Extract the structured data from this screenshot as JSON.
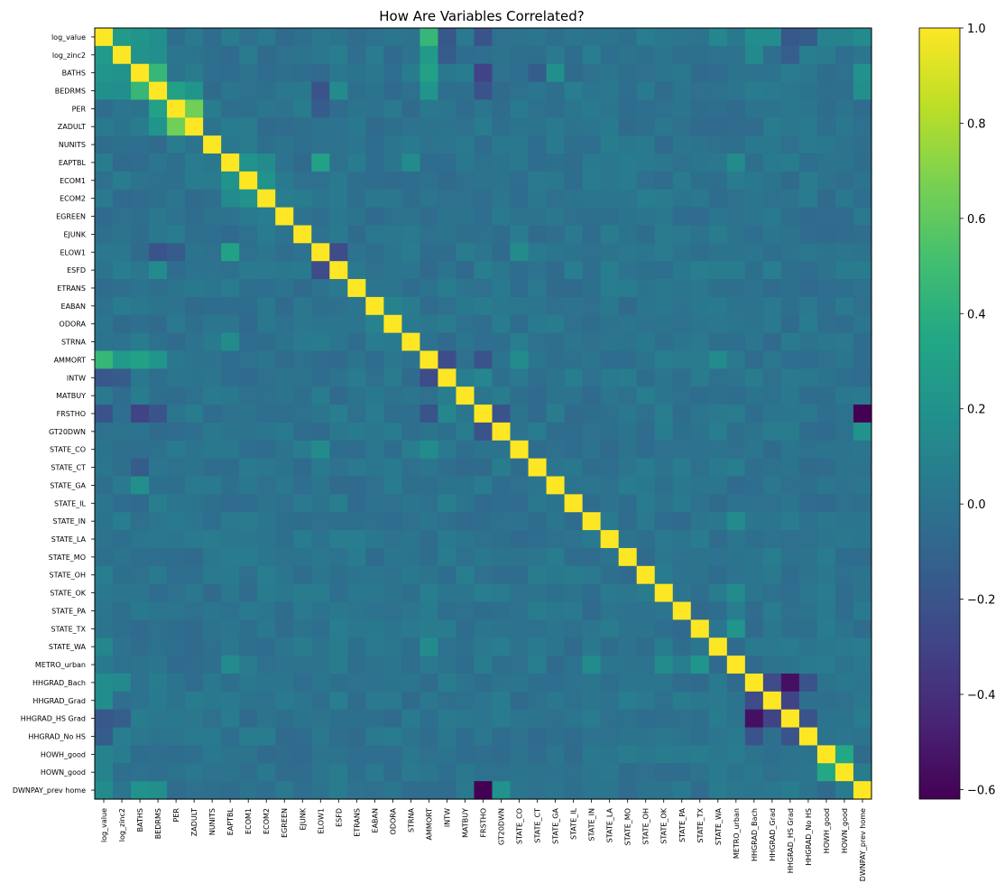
{
  "chart_data": {
    "type": "heatmap",
    "title": "How Are Variables Correlated?",
    "labels": [
      "log_value",
      "log_zinc2",
      "BATHS",
      "BEDRMS",
      "PER",
      "ZADULT",
      "NUNITS",
      "EAPTBL",
      "ECOM1",
      "ECOM2",
      "EGREEN",
      "EJUNK",
      "ELOW1",
      "ESFD",
      "ETRANS",
      "EABAN",
      "ODORA",
      "STRNA",
      "AMMORT",
      "INTW",
      "MATBUY",
      "FRSTHO",
      "GT20DWN",
      "STATE_CO",
      "STATE_CT",
      "STATE_GA",
      "STATE_IL",
      "STATE_IN",
      "STATE_LA",
      "STATE_MO",
      "STATE_OH",
      "STATE_OK",
      "STATE_PA",
      "STATE_TX",
      "STATE_WA",
      "METRO_urban",
      "HHGRAD_Bach",
      "HHGRAD_Grad",
      "HHGRAD_HS Grad",
      "HHGRAD_No HS",
      "HOWH_good",
      "HOWN_good",
      "DWNPAY_prev home"
    ],
    "colorbar": {
      "min": -0.62,
      "max": 1.0,
      "ticks": [
        -0.6,
        -0.4,
        -0.2,
        0.0,
        0.2,
        0.4,
        0.6,
        0.8,
        1.0
      ],
      "tick_labels": [
        "−0.6",
        "−0.4",
        "−0.2",
        "0.0",
        "0.2",
        "0.4",
        "0.6",
        "0.8",
        "1.0"
      ],
      "colormap": "viridis"
    },
    "correlations": [
      {
        "a": "log_value",
        "b": "log_zinc2",
        "r": 0.25
      },
      {
        "a": "log_value",
        "b": "BATHS",
        "r": 0.22
      },
      {
        "a": "log_value",
        "b": "BEDRMS",
        "r": 0.18
      },
      {
        "a": "log_value",
        "b": "AMMORT",
        "r": 0.45
      },
      {
        "a": "log_value",
        "b": "INTW",
        "r": -0.18
      },
      {
        "a": "log_value",
        "b": "FRSTHO",
        "r": -0.2
      },
      {
        "a": "log_value",
        "b": "STATE_WA",
        "r": 0.12
      },
      {
        "a": "log_value",
        "b": "HHGRAD_Bach",
        "r": 0.16
      },
      {
        "a": "log_value",
        "b": "HHGRAD_Grad",
        "r": 0.16
      },
      {
        "a": "log_value",
        "b": "HHGRAD_HS Grad",
        "r": -0.18
      },
      {
        "a": "log_value",
        "b": "HHGRAD_No HS",
        "r": -0.15
      },
      {
        "a": "log_value",
        "b": "HOWH_good",
        "r": 0.1
      },
      {
        "a": "log_value",
        "b": "HOWN_good",
        "r": 0.1
      },
      {
        "a": "log_value",
        "b": "DWNPAY_prev home",
        "r": 0.15
      },
      {
        "a": "log_zinc2",
        "b": "BATHS",
        "r": 0.2
      },
      {
        "a": "log_zinc2",
        "b": "BEDRMS",
        "r": 0.18
      },
      {
        "a": "log_zinc2",
        "b": "AMMORT",
        "r": 0.25
      },
      {
        "a": "log_zinc2",
        "b": "INTW",
        "r": -0.15
      },
      {
        "a": "log_zinc2",
        "b": "HHGRAD_Bach",
        "r": 0.14
      },
      {
        "a": "log_zinc2",
        "b": "HHGRAD_HS Grad",
        "r": -0.14
      },
      {
        "a": "BATHS",
        "b": "BEDRMS",
        "r": 0.45
      },
      {
        "a": "BATHS",
        "b": "AMMORT",
        "r": 0.3
      },
      {
        "a": "BATHS",
        "b": "FRSTHO",
        "r": -0.3
      },
      {
        "a": "BATHS",
        "b": "STATE_GA",
        "r": 0.18
      },
      {
        "a": "BATHS",
        "b": "STATE_CT",
        "r": -0.15
      },
      {
        "a": "BATHS",
        "b": "DWNPAY_prev home",
        "r": 0.2
      },
      {
        "a": "BEDRMS",
        "b": "PER",
        "r": 0.3
      },
      {
        "a": "BEDRMS",
        "b": "ZADULT",
        "r": 0.22
      },
      {
        "a": "BEDRMS",
        "b": "AMMORT",
        "r": 0.22
      },
      {
        "a": "BEDRMS",
        "b": "FRSTHO",
        "r": -0.2
      },
      {
        "a": "BEDRMS",
        "b": "ELOW1",
        "r": -0.2
      },
      {
        "a": "BEDRMS",
        "b": "ESFD",
        "r": 0.15
      },
      {
        "a": "BEDRMS",
        "b": "DWNPAY_prev home",
        "r": 0.18
      },
      {
        "a": "PER",
        "b": "ZADULT",
        "r": 0.65
      },
      {
        "a": "PER",
        "b": "ELOW1",
        "r": -0.15
      },
      {
        "a": "EAPTBL",
        "b": "ELOW1",
        "r": 0.3
      },
      {
        "a": "EAPTBL",
        "b": "ECOM1",
        "r": 0.2
      },
      {
        "a": "EAPTBL",
        "b": "ECOM2",
        "r": 0.15
      },
      {
        "a": "EAPTBL",
        "b": "STRNA",
        "r": 0.15
      },
      {
        "a": "EAPTBL",
        "b": "METRO_urban",
        "r": 0.15
      },
      {
        "a": "ECOM1",
        "b": "ECOM2",
        "r": 0.2
      },
      {
        "a": "ELOW1",
        "b": "ESFD",
        "r": -0.25
      },
      {
        "a": "ELOW1",
        "b": "STATE_CO",
        "r": 0.15
      },
      {
        "a": "EABAN",
        "b": "ODORA",
        "r": 0.1
      },
      {
        "a": "AMMORT",
        "b": "INTW",
        "r": -0.25
      },
      {
        "a": "AMMORT",
        "b": "FRSTHO",
        "r": -0.2
      },
      {
        "a": "AMMORT",
        "b": "STATE_CO",
        "r": 0.15
      },
      {
        "a": "AMMORT",
        "b": "STATE_WA",
        "r": 0.15
      },
      {
        "a": "INTW",
        "b": "FRSTHO",
        "r": 0.12
      },
      {
        "a": "FRSTHO",
        "b": "GT20DWN",
        "r": -0.2
      },
      {
        "a": "FRSTHO",
        "b": "DWNPAY_prev home",
        "r": -0.62
      },
      {
        "a": "GT20DWN",
        "b": "DWNPAY_prev home",
        "r": 0.2
      },
      {
        "a": "STATE_IN",
        "b": "METRO_urban",
        "r": 0.15
      },
      {
        "a": "STATE_OK",
        "b": "METRO_urban",
        "r": 0.15
      },
      {
        "a": "STATE_TX",
        "b": "METRO_urban",
        "r": 0.22
      },
      {
        "a": "HHGRAD_Bach",
        "b": "HHGRAD_Grad",
        "r": -0.25
      },
      {
        "a": "HHGRAD_Bach",
        "b": "HHGRAD_HS Grad",
        "r": -0.55
      },
      {
        "a": "HHGRAD_Bach",
        "b": "HHGRAD_No HS",
        "r": -0.2
      },
      {
        "a": "HHGRAD_Grad",
        "b": "HHGRAD_HS Grad",
        "r": -0.3
      },
      {
        "a": "HHGRAD_HS Grad",
        "b": "HHGRAD_No HS",
        "r": -0.2
      },
      {
        "a": "HOWH_good",
        "b": "HOWN_good",
        "r": 0.35
      }
    ]
  }
}
